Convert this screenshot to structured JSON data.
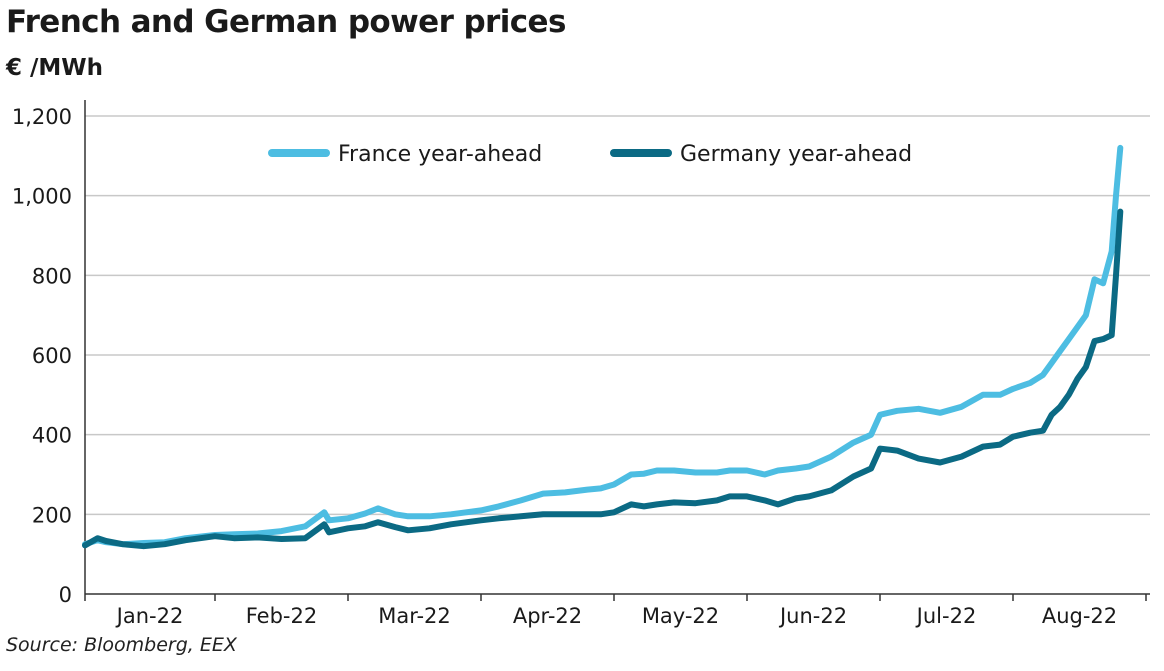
{
  "title": "French and German power prices",
  "unit": "€ /MWh",
  "source": "Source: Bloomberg, EEX",
  "chart_data": {
    "type": "line",
    "title": "French and German power prices",
    "ylabel": "€ /MWh",
    "xlabel": "",
    "ylim": [
      0,
      1200
    ],
    "yticks": [
      0,
      200,
      400,
      600,
      800,
      1000,
      1200
    ],
    "ytick_labels": [
      "0",
      "200",
      "400",
      "600",
      "800",
      "1,000",
      "1,200"
    ],
    "xlim": [
      "2022-01-01",
      "2022-08-26"
    ],
    "xtick_labels": [
      "Jan-22",
      "Feb-22",
      "Mar-22",
      "Apr-22",
      "May-22",
      "Jun-22",
      "Jul-22",
      "Aug-22"
    ],
    "grid": true,
    "legend_position": "top",
    "colors": {
      "France year-ahead": "#4dbde2",
      "Germany year-ahead": "#0b6a84"
    },
    "series": [
      {
        "name": "France year-ahead",
        "color": "#4dbde2",
        "x": [
          "2022-01-01",
          "2022-01-04",
          "2022-01-06",
          "2022-01-10",
          "2022-01-15",
          "2022-01-20",
          "2022-01-25",
          "2022-02-01",
          "2022-02-05",
          "2022-02-10",
          "2022-02-15",
          "2022-02-20",
          "2022-02-24",
          "2022-02-25",
          "2022-03-01",
          "2022-03-05",
          "2022-03-08",
          "2022-03-12",
          "2022-03-15",
          "2022-03-20",
          "2022-03-25",
          "2022-04-01",
          "2022-04-05",
          "2022-04-10",
          "2022-04-15",
          "2022-04-20",
          "2022-04-25",
          "2022-04-28",
          "2022-05-01",
          "2022-05-05",
          "2022-05-08",
          "2022-05-11",
          "2022-05-15",
          "2022-05-20",
          "2022-05-25",
          "2022-05-28",
          "2022-06-01",
          "2022-06-05",
          "2022-06-08",
          "2022-06-12",
          "2022-06-15",
          "2022-06-20",
          "2022-06-25",
          "2022-06-29",
          "2022-07-01",
          "2022-07-05",
          "2022-07-10",
          "2022-07-15",
          "2022-07-20",
          "2022-07-25",
          "2022-07-29",
          "2022-08-01",
          "2022-08-05",
          "2022-08-08",
          "2022-08-10",
          "2022-08-12",
          "2022-08-14",
          "2022-08-16",
          "2022-08-18",
          "2022-08-20",
          "2022-08-22",
          "2022-08-24",
          "2022-08-25",
          "2022-08-26"
        ],
        "values": [
          125,
          135,
          130,
          125,
          128,
          130,
          140,
          148,
          150,
          152,
          158,
          170,
          205,
          185,
          190,
          202,
          215,
          200,
          195,
          195,
          200,
          210,
          220,
          235,
          252,
          255,
          262,
          265,
          275,
          300,
          302,
          310,
          310,
          305,
          305,
          310,
          310,
          300,
          310,
          315,
          320,
          345,
          380,
          400,
          450,
          460,
          465,
          455,
          470,
          500,
          500,
          515,
          530,
          550,
          580,
          610,
          640,
          670,
          700,
          790,
          780,
          860,
          1000,
          1120
        ]
      },
      {
        "name": "Germany year-ahead",
        "color": "#0b6a84",
        "x": [
          "2022-01-01",
          "2022-01-04",
          "2022-01-06",
          "2022-01-10",
          "2022-01-15",
          "2022-01-20",
          "2022-01-25",
          "2022-02-01",
          "2022-02-05",
          "2022-02-10",
          "2022-02-15",
          "2022-02-20",
          "2022-02-24",
          "2022-02-25",
          "2022-03-01",
          "2022-03-05",
          "2022-03-08",
          "2022-03-12",
          "2022-03-15",
          "2022-03-20",
          "2022-03-25",
          "2022-04-01",
          "2022-04-05",
          "2022-04-10",
          "2022-04-15",
          "2022-04-20",
          "2022-04-25",
          "2022-04-28",
          "2022-05-01",
          "2022-05-05",
          "2022-05-08",
          "2022-05-11",
          "2022-05-15",
          "2022-05-20",
          "2022-05-25",
          "2022-05-28",
          "2022-06-01",
          "2022-06-05",
          "2022-06-08",
          "2022-06-12",
          "2022-06-15",
          "2022-06-20",
          "2022-06-25",
          "2022-06-29",
          "2022-07-01",
          "2022-07-05",
          "2022-07-10",
          "2022-07-15",
          "2022-07-20",
          "2022-07-25",
          "2022-07-29",
          "2022-08-01",
          "2022-08-05",
          "2022-08-08",
          "2022-08-10",
          "2022-08-12",
          "2022-08-14",
          "2022-08-16",
          "2022-08-18",
          "2022-08-20",
          "2022-08-22",
          "2022-08-24",
          "2022-08-25",
          "2022-08-26"
        ],
        "values": [
          122,
          140,
          133,
          125,
          120,
          125,
          135,
          145,
          140,
          142,
          138,
          140,
          175,
          155,
          165,
          170,
          180,
          168,
          160,
          165,
          175,
          185,
          190,
          195,
          200,
          200,
          200,
          200,
          205,
          225,
          220,
          225,
          230,
          228,
          235,
          245,
          245,
          235,
          225,
          240,
          245,
          260,
          295,
          315,
          365,
          360,
          340,
          330,
          345,
          370,
          375,
          395,
          405,
          410,
          450,
          470,
          500,
          540,
          570,
          635,
          640,
          650,
          800,
          960
        ]
      }
    ]
  }
}
